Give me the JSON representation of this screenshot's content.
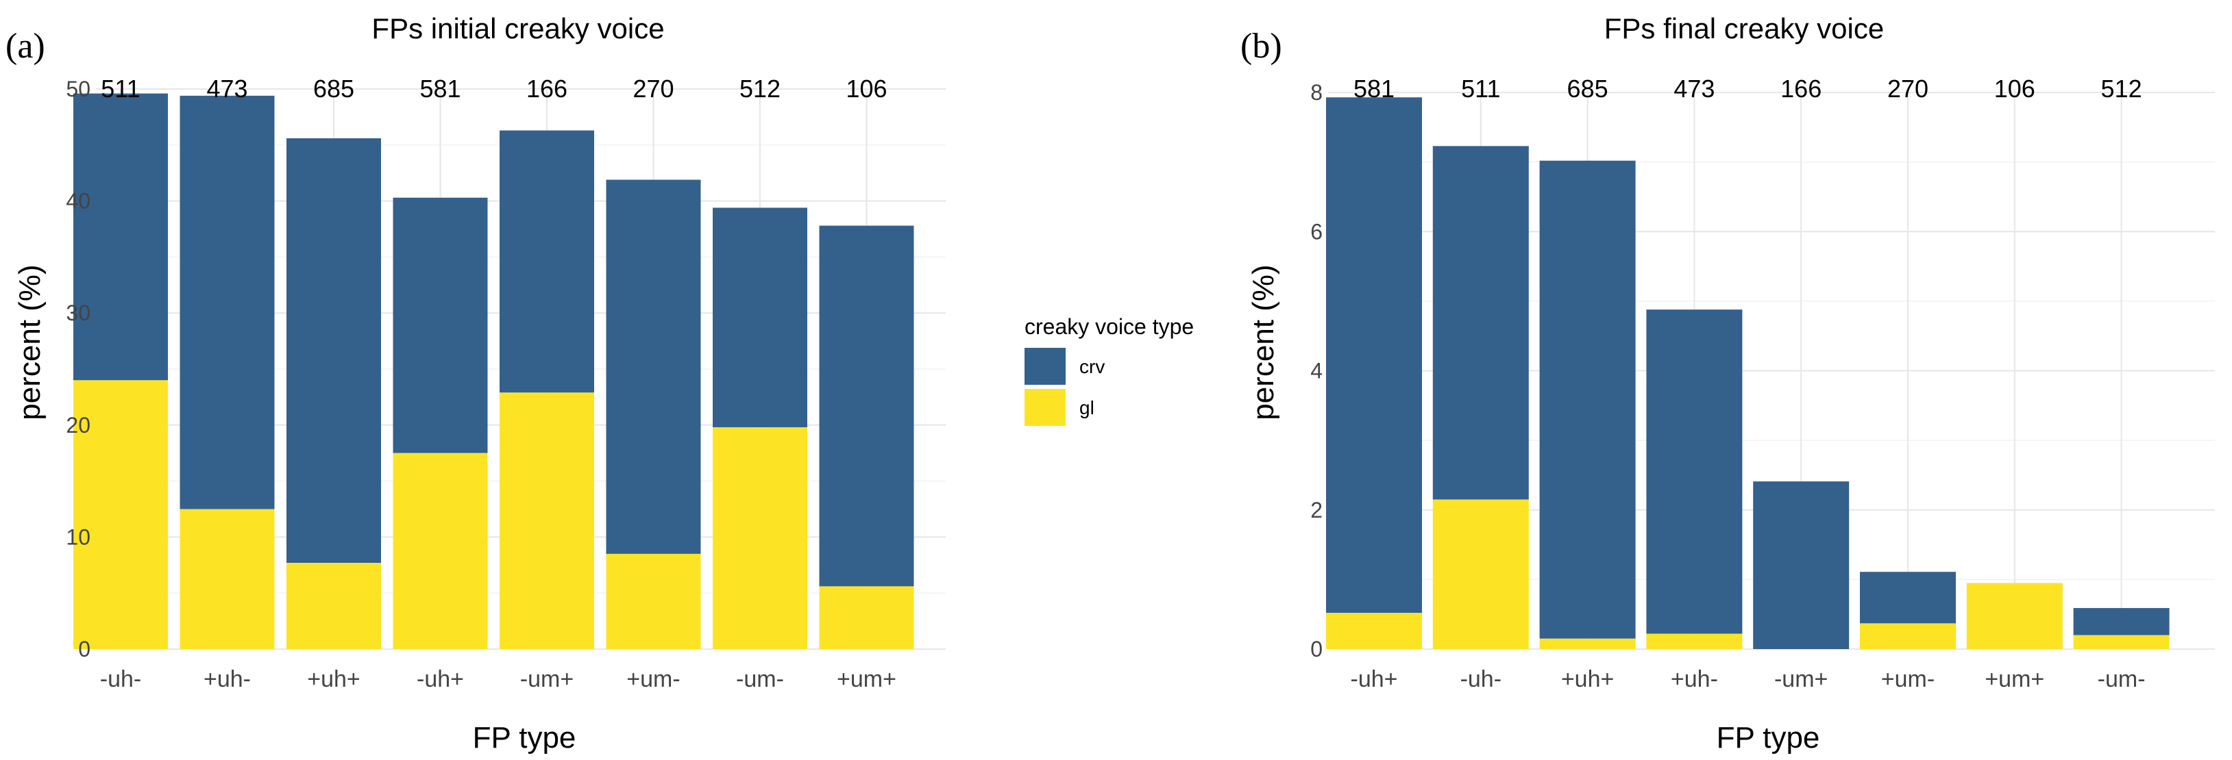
{
  "colors": {
    "crv": "#34608c",
    "gl": "#fce424"
  },
  "legend": {
    "title": "creaky voice type",
    "items": [
      {
        "key": "crv",
        "label": "crv"
      },
      {
        "key": "gl",
        "label": "gl"
      }
    ]
  },
  "chart_data": [
    {
      "panel": "(a)",
      "type": "bar",
      "stacked": true,
      "title": "FPs initial creaky voice",
      "xlabel": "FP type",
      "ylabel": "percent (%)",
      "ylim": [
        0,
        50
      ],
      "yticks": [
        0,
        10,
        20,
        30,
        40,
        50
      ],
      "categories": [
        "-uh-",
        "+uh-",
        "+uh+",
        "-uh+",
        "-um+",
        "+um-",
        "-um-",
        "+um+"
      ],
      "counts": [
        "511",
        "473",
        "685",
        "581",
        "166",
        "270",
        "512",
        "106"
      ],
      "series": [
        {
          "name": "gl",
          "values": [
            24.0,
            12.5,
            7.7,
            17.5,
            22.9,
            8.5,
            19.8,
            5.6
          ]
        },
        {
          "name": "crv",
          "values": [
            25.6,
            36.9,
            37.9,
            22.8,
            23.4,
            33.4,
            19.6,
            32.2
          ]
        }
      ],
      "totals": [
        49.6,
        49.4,
        45.6,
        40.3,
        46.3,
        41.9,
        39.4,
        37.8
      ]
    },
    {
      "panel": "(b)",
      "type": "bar",
      "stacked": true,
      "title": "FPs final creaky voice",
      "xlabel": "FP type",
      "ylabel": "percent (%)",
      "ylim": [
        0,
        8.05
      ],
      "yticks": [
        0,
        2,
        4,
        6,
        8
      ],
      "categories": [
        "-uh+",
        "-uh-",
        "+uh+",
        "+uh-",
        "-um+",
        "+um-",
        "+um+",
        "-um-"
      ],
      "counts": [
        "581",
        "511",
        "685",
        "473",
        "166",
        "270",
        "106",
        "512"
      ],
      "series": [
        {
          "name": "gl",
          "values": [
            0.52,
            2.15,
            0.15,
            0.22,
            0.0,
            0.37,
            0.95,
            0.2
          ]
        },
        {
          "name": "crv",
          "values": [
            7.41,
            5.08,
            6.87,
            4.66,
            2.41,
            0.74,
            0.0,
            0.39
          ]
        }
      ],
      "totals": [
        7.93,
        7.23,
        7.02,
        4.88,
        2.41,
        1.11,
        0.95,
        0.59
      ]
    }
  ]
}
